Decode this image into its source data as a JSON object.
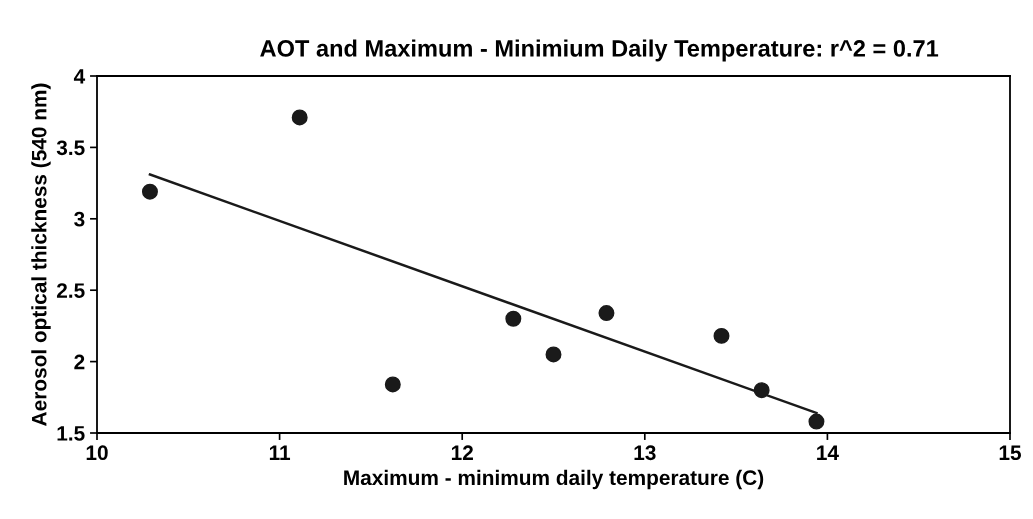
{
  "chart_data": {
    "type": "scatter",
    "title": "AOT and Maximum - Minimium Daily Temperature: r^2 = 0.71",
    "xlabel": "Maximum - minimum daily temperature (C)",
    "ylabel": "Aerosol optical thickness (540 nm)",
    "series": [
      {
        "color": "#1a1a1a",
        "marker": "circle",
        "x": [
          10.29,
          11.11,
          11.62,
          12.28,
          12.5,
          12.79,
          13.42,
          13.64,
          13.94
        ],
        "values": [
          3.19,
          3.71,
          1.84,
          2.3,
          2.05,
          2.34,
          2.18,
          1.8,
          1.58
        ]
      },
      {
        "type": "line",
        "color": "#1a1a1a",
        "marker": "none",
        "line_style": "solid",
        "x": [
          10.29,
          13.94
        ],
        "values": [
          3.31,
          1.64
        ]
      }
    ],
    "xlim": [
      10,
      15
    ],
    "xticks": [
      10,
      11,
      12,
      13,
      14,
      15
    ],
    "ylim": [
      1.5,
      4
    ],
    "yticks": [
      1.5,
      2,
      2.5,
      3,
      3.5,
      4
    ],
    "grid": false,
    "legend": false
  }
}
